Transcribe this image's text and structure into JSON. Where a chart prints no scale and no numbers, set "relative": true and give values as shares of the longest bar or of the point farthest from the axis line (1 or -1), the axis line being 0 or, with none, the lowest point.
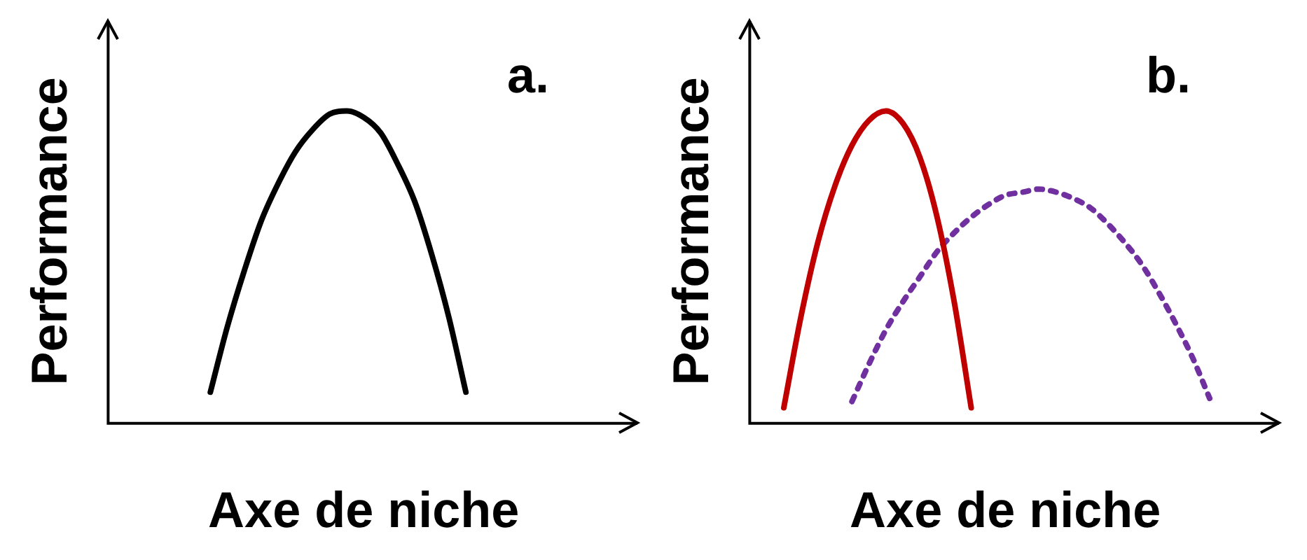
{
  "chart_data": [
    {
      "type": "line",
      "relative": true,
      "xlabel": "Axe de niche",
      "ylabel": "Performance",
      "annotations": [
        "a."
      ],
      "legend": false,
      "grid": false,
      "marker": "none",
      "categories": [
        null,
        null,
        null,
        null,
        null,
        null,
        null,
        null,
        null,
        null,
        null,
        null,
        null,
        null,
        null,
        null,
        null,
        null,
        null,
        null,
        null,
        null,
        null,
        null,
        null,
        null,
        null,
        null,
        null,
        null,
        null
      ],
      "series": [
        {
          "color": "#000000",
          "line_style": "solid",
          "values": [
            null,
            null,
            null,
            null,
            null,
            null,
            0.1,
            0.31,
            0.49,
            0.65,
            0.77,
            0.87,
            0.94,
            0.99,
            1.0,
            0.98,
            0.93,
            0.83,
            0.71,
            0.54,
            0.34,
            0.1,
            null,
            null,
            null,
            null,
            null,
            null,
            null,
            null,
            null
          ]
        }
      ]
    },
    {
      "type": "line",
      "relative": true,
      "xlabel": "Axe de niche",
      "ylabel": "Performance",
      "annotations": [
        "b."
      ],
      "legend": false,
      "grid": false,
      "marker": "none",
      "categories": [
        null,
        null,
        null,
        null,
        null,
        null,
        null,
        null,
        null,
        null,
        null,
        null,
        null,
        null,
        null,
        null,
        null,
        null,
        null,
        null,
        null,
        null,
        null,
        null,
        null,
        null,
        null,
        null,
        null,
        null,
        null
      ],
      "series": [
        {
          "color": "#c00000",
          "line_style": "solid",
          "values": [
            null,
            null,
            0.05,
            0.34,
            0.58,
            0.76,
            0.89,
            0.97,
            1.0,
            0.96,
            0.85,
            0.66,
            0.39,
            0.05,
            null,
            null,
            null,
            null,
            null,
            null,
            null,
            null,
            null,
            null,
            null,
            null,
            null,
            null,
            null,
            null,
            null
          ]
        },
        {
          "color": "#7030a0",
          "line_style": "dotted",
          "values": [
            null,
            null,
            null,
            null,
            null,
            null,
            0.07,
            0.19,
            0.3,
            0.39,
            0.47,
            0.55,
            0.61,
            0.66,
            0.7,
            0.73,
            0.74,
            0.75,
            0.74,
            0.72,
            0.69,
            0.64,
            0.58,
            0.51,
            0.42,
            0.32,
            0.21,
            0.08,
            null,
            null,
            null
          ]
        }
      ]
    }
  ]
}
